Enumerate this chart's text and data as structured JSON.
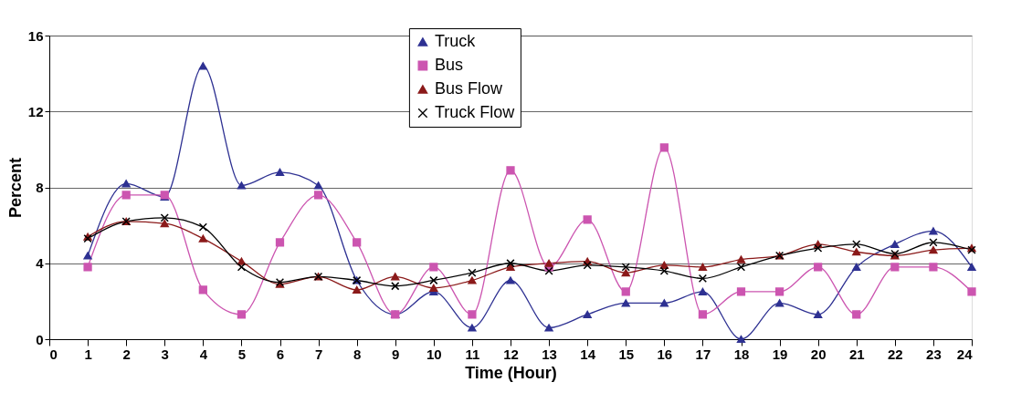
{
  "chart_data": {
    "type": "line",
    "xlabel": "Time (Hour)",
    "ylabel": "Percent",
    "x": [
      1,
      2,
      3,
      4,
      5,
      6,
      7,
      8,
      9,
      10,
      11,
      12,
      13,
      14,
      15,
      16,
      17,
      18,
      19,
      20,
      21,
      22,
      23,
      24
    ],
    "xlim": [
      0,
      24
    ],
    "xticks": [
      0,
      1,
      2,
      3,
      4,
      5,
      6,
      7,
      8,
      9,
      10,
      11,
      12,
      13,
      14,
      15,
      16,
      17,
      18,
      19,
      20,
      21,
      22,
      23,
      24
    ],
    "ylim": [
      0,
      16
    ],
    "yticks": [
      0,
      4,
      8,
      12,
      16
    ],
    "grid": "y",
    "legend": "top",
    "line_style": "solid",
    "series": [
      {
        "name": "Truck",
        "color": "#2e3192",
        "marker": "triangle",
        "values": [
          4.4,
          8.2,
          7.5,
          14.4,
          8.1,
          8.8,
          8.1,
          3.1,
          1.3,
          2.5,
          0.6,
          3.1,
          0.6,
          1.3,
          1.9,
          1.9,
          2.5,
          0,
          1.9,
          1.3,
          3.8,
          5.0,
          5.7,
          3.8
        ]
      },
      {
        "name": "Bus",
        "color": "#cc55b0",
        "marker": "square",
        "values": [
          3.8,
          7.6,
          7.6,
          2.6,
          1.3,
          5.1,
          7.6,
          5.1,
          1.3,
          3.8,
          1.3,
          8.9,
          3.8,
          6.3,
          2.5,
          10.1,
          1.3,
          2.5,
          2.5,
          3.8,
          1.3,
          3.8,
          3.8,
          2.5
        ]
      },
      {
        "name": "Bus Flow",
        "color": "#8b1a1a",
        "marker": "triangle",
        "values": [
          5.4,
          6.2,
          6.1,
          5.3,
          4.1,
          2.9,
          3.3,
          2.6,
          3.3,
          2.7,
          3.1,
          3.8,
          4.0,
          4.1,
          3.5,
          3.9,
          3.8,
          4.2,
          4.4,
          5.0,
          4.6,
          4.4,
          4.7,
          4.8
        ]
      },
      {
        "name": "Truck Flow",
        "color": "#000000",
        "marker": "cross",
        "values": [
          5.3,
          6.2,
          6.4,
          5.9,
          3.8,
          3.0,
          3.3,
          3.1,
          2.8,
          3.1,
          3.5,
          4.0,
          3.6,
          3.9,
          3.8,
          3.6,
          3.2,
          3.8,
          4.4,
          4.8,
          5.0,
          4.5,
          5.1,
          4.7
        ]
      }
    ]
  }
}
